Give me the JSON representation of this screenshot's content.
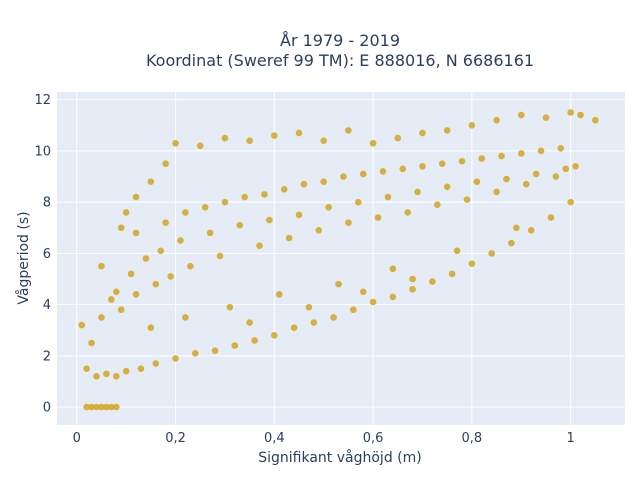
{
  "chart_data": {
    "type": "scatter",
    "title_line1": "År 1979 - 2019",
    "title_line2": "Koordinat (Sweref 99 TM): E 888016, N 6686161",
    "xlabel": "Signifikant våghöjd (m)",
    "ylabel": "Vågperiod (s)",
    "xlim": [
      -0.04,
      1.11
    ],
    "ylim": [
      -0.7,
      12.3
    ],
    "x_ticks": [
      0,
      0.2,
      0.4,
      0.6,
      0.8,
      1
    ],
    "x_tick_labels": [
      "0",
      "0,2",
      "0,4",
      "0,6",
      "0,8",
      "1"
    ],
    "y_ticks": [
      0,
      2,
      4,
      6,
      8,
      10,
      12
    ],
    "y_tick_labels": [
      "0",
      "2",
      "4",
      "6",
      "8",
      "10",
      "12"
    ],
    "grid": true,
    "legend": "none",
    "colors": {
      "marker": "#d4a420",
      "plot_background": "#e5ecf6",
      "grid": "#ffffff",
      "text": "#2a3f5f"
    },
    "series": [
      {
        "marker_color": "#d4a420",
        "x": [
          0.02,
          0.03,
          0.04,
          0.05,
          0.06,
          0.07,
          0.08,
          0.01,
          0.05,
          0.09,
          0.1,
          0.12,
          0.15,
          0.18,
          0.2,
          0.25,
          0.3,
          0.35,
          0.4,
          0.45,
          0.5,
          0.55,
          0.6,
          0.65,
          0.7,
          0.75,
          0.8,
          0.85,
          0.9,
          0.95,
          1.0,
          1.02,
          1.05,
          0.02,
          0.04,
          0.06,
          0.08,
          0.1,
          0.13,
          0.16,
          0.2,
          0.24,
          0.28,
          0.32,
          0.36,
          0.4,
          0.44,
          0.48,
          0.52,
          0.56,
          0.6,
          0.64,
          0.68,
          0.72,
          0.76,
          0.8,
          0.84,
          0.88,
          0.92,
          0.96,
          1.0,
          0.12,
          0.18,
          0.22,
          0.26,
          0.3,
          0.34,
          0.38,
          0.42,
          0.46,
          0.5,
          0.54,
          0.58,
          0.62,
          0.66,
          0.7,
          0.74,
          0.78,
          0.82,
          0.86,
          0.9,
          0.94,
          0.98,
          0.08,
          0.11,
          0.14,
          0.17,
          0.21,
          0.27,
          0.33,
          0.39,
          0.45,
          0.51,
          0.57,
          0.63,
          0.69,
          0.75,
          0.81,
          0.87,
          0.93,
          0.99,
          0.03,
          0.05,
          0.07,
          0.09,
          0.12,
          0.16,
          0.19,
          0.23,
          0.29,
          0.37,
          0.43,
          0.49,
          0.55,
          0.61,
          0.67,
          0.73,
          0.79,
          0.85,
          0.91,
          0.97,
          1.01,
          0.15,
          0.22,
          0.31,
          0.41,
          0.53,
          0.64,
          0.77,
          0.89,
          0.35,
          0.47,
          0.58,
          0.68
        ],
        "y": [
          0,
          0,
          0,
          0,
          0,
          0,
          0,
          3.2,
          5.5,
          7,
          7.6,
          8.2,
          8.8,
          9.5,
          10.3,
          10.2,
          10.5,
          10.4,
          10.6,
          10.7,
          10.4,
          10.8,
          10.3,
          10.5,
          10.7,
          10.8,
          11,
          11.2,
          11.4,
          11.3,
          11.5,
          11.4,
          11.2,
          1.5,
          1.2,
          1.3,
          1.2,
          1.4,
          1.5,
          1.7,
          1.9,
          2.1,
          2.2,
          2.4,
          2.6,
          2.8,
          3.1,
          3.3,
          3.5,
          3.8,
          4.1,
          4.3,
          4.6,
          4.9,
          5.2,
          5.6,
          6,
          6.4,
          6.9,
          7.4,
          8,
          6.8,
          7.2,
          7.6,
          7.8,
          8,
          8.2,
          8.3,
          8.5,
          8.7,
          8.8,
          9,
          9.1,
          9.2,
          9.3,
          9.4,
          9.5,
          9.6,
          9.7,
          9.8,
          9.9,
          10,
          10.1,
          4.5,
          5.2,
          5.8,
          6.1,
          6.5,
          6.8,
          7.1,
          7.3,
          7.5,
          7.8,
          8,
          8.2,
          8.4,
          8.6,
          8.8,
          8.9,
          9.1,
          9.3,
          2.5,
          3.5,
          4.2,
          3.8,
          4.4,
          4.8,
          5.1,
          5.5,
          5.9,
          6.3,
          6.6,
          6.9,
          7.2,
          7.4,
          7.6,
          7.9,
          8.1,
          8.4,
          8.7,
          9,
          9.4,
          3.1,
          3.5,
          3.9,
          4.4,
          4.8,
          5.4,
          6.1,
          7,
          3.3,
          3.9,
          4.5,
          5
        ]
      }
    ]
  }
}
